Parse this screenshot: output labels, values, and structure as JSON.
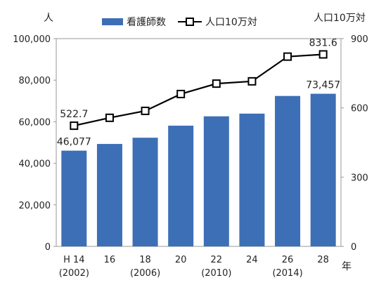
{
  "chart_data": {
    "type": "bar",
    "categories": [
      "H 14",
      "16",
      "18",
      "20",
      "22",
      "24",
      "26",
      "28"
    ],
    "category_sublabels": [
      "(2002)",
      "",
      "(2006)",
      "",
      "(2010)",
      "",
      "(2014)",
      ""
    ],
    "series": [
      {
        "name": "看護師数",
        "type": "bar",
        "axis": "left",
        "values": [
          46077,
          49300,
          52300,
          58100,
          62600,
          63900,
          72400,
          73457
        ],
        "color": "#3d6fb6"
      },
      {
        "name": "人口10万対",
        "type": "line",
        "axis": "right",
        "values": [
          522.7,
          557,
          587,
          660,
          705,
          715,
          822,
          831.6
        ],
        "color": "#000000",
        "marker": "square-hollow"
      }
    ],
    "data_labels": [
      {
        "series": 0,
        "index": 0,
        "text": "46,077"
      },
      {
        "series": 0,
        "index": 7,
        "text": "73,457"
      },
      {
        "series": 1,
        "index": 0,
        "text": "522.7"
      },
      {
        "series": 1,
        "index": 7,
        "text": "831.6"
      }
    ],
    "left_unit": "人",
    "right_unit": "人口10万対",
    "x_unit": "年",
    "ylim": [
      0,
      100000
    ],
    "yticks": [
      0,
      20000,
      40000,
      60000,
      80000,
      100000
    ],
    "ytick_labels": [
      "0",
      "20,000",
      "40,000",
      "60,000",
      "80,000",
      "100,000"
    ],
    "y2lim": [
      0,
      900
    ],
    "y2ticks": [
      0,
      300,
      600,
      900
    ],
    "y2tick_labels": [
      "0",
      "300",
      "600",
      "900"
    ],
    "legend_position": "top",
    "grid": false
  }
}
